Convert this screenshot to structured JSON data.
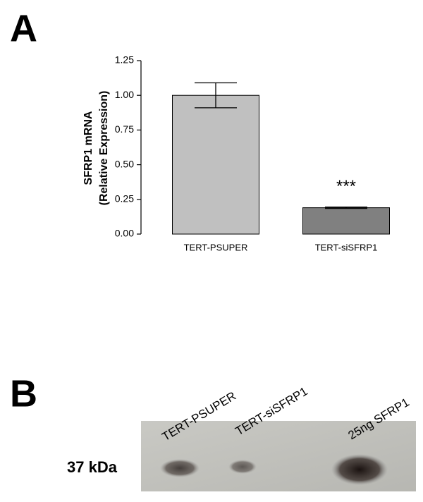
{
  "panel_labels": [
    "A",
    "B"
  ],
  "chart_data": {
    "type": "bar",
    "ylabel": [
      "SFRP1 mRNA",
      "(Relative Expression)"
    ],
    "categories": [
      "TERT-PSUPER",
      "TERT-siSFRP1"
    ],
    "values": [
      1.0,
      0.19
    ],
    "errors": [
      0.09,
      0.005
    ],
    "colors": [
      "#c0c0c0",
      "#808080"
    ],
    "annotations": [
      null,
      "***"
    ],
    "ylim": [
      0,
      1.25
    ],
    "yticks": [
      {
        "value": 0,
        "label": "0.00"
      },
      0.25,
      {
        "value": 0.5,
        "label": "0.50"
      },
      0.75,
      {
        "value": 1.0,
        "label": "1.00"
      },
      1.25
    ]
  },
  "blot": {
    "lane_labels": [
      "TERT-PSUPER",
      "TERT-siSFRP1",
      "25ng SFRP1"
    ],
    "marker": "37 kDa"
  }
}
